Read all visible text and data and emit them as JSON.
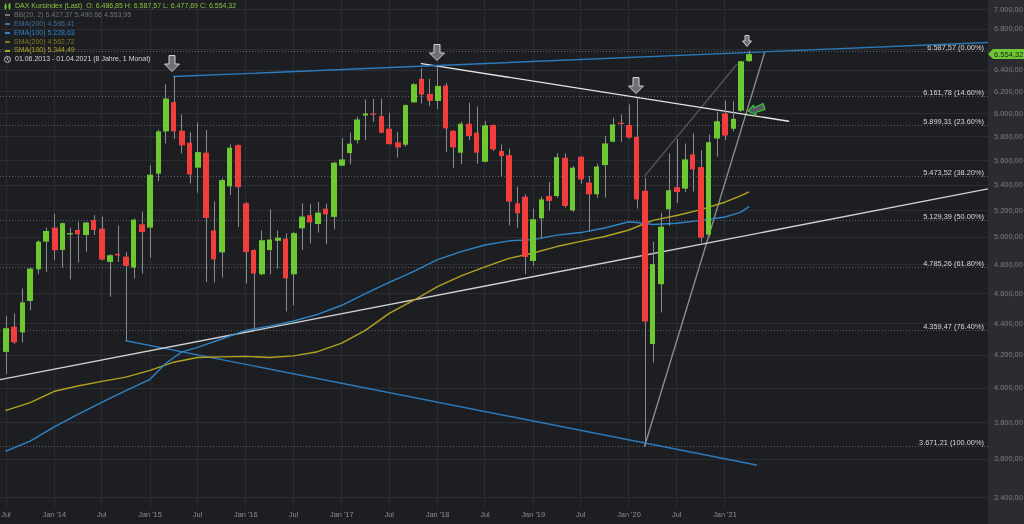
{
  "chart_data": {
    "type": "candlestick",
    "title": "DAX Kursindex (Last)",
    "subtitle": "O: 6.486,85 H: 6.587,57 L: 6.477,69 C: 6.554,32",
    "x": [
      "2013-07",
      "2013-08",
      "2013-09",
      "2013-10",
      "2013-11",
      "2013-12",
      "2014-01",
      "2014-02",
      "2014-03",
      "2014-04",
      "2014-05",
      "2014-06",
      "2014-07",
      "2014-08",
      "2014-09",
      "2014-10",
      "2014-11",
      "2014-12",
      "2015-01",
      "2015-02",
      "2015-03",
      "2015-04",
      "2015-05",
      "2015-06",
      "2015-07",
      "2015-08",
      "2015-09",
      "2015-10",
      "2015-11",
      "2015-12",
      "2016-01",
      "2016-02",
      "2016-03",
      "2016-04",
      "2016-05",
      "2016-06",
      "2016-07",
      "2016-08",
      "2016-09",
      "2016-10",
      "2016-11",
      "2016-12",
      "2017-01",
      "2017-02",
      "2017-03",
      "2017-04",
      "2017-05",
      "2017-06",
      "2017-07",
      "2017-08",
      "2017-09",
      "2017-10",
      "2017-11",
      "2017-12",
      "2018-01",
      "2018-02",
      "2018-03",
      "2018-04",
      "2018-05",
      "2018-06",
      "2018-07",
      "2018-08",
      "2018-09",
      "2018-10",
      "2018-11",
      "2018-12",
      "2019-01",
      "2019-02",
      "2019-03",
      "2019-04",
      "2019-05",
      "2019-06",
      "2019-07",
      "2019-08",
      "2019-09",
      "2019-10",
      "2019-11",
      "2019-12",
      "2020-01",
      "2020-02",
      "2020-03",
      "2020-04",
      "2020-05",
      "2020-06",
      "2020-07",
      "2020-08",
      "2020-09",
      "2020-10",
      "2020-11",
      "2020-12",
      "2021-01",
      "2021-02",
      "2021-03",
      "2021-04"
    ],
    "ohlc": [
      [
        4220,
        4450,
        4085,
        4370
      ],
      [
        4380,
        4467,
        4270,
        4280
      ],
      [
        4343,
        4635,
        4280,
        4540
      ],
      [
        4550,
        4785,
        4488,
        4773
      ],
      [
        4768,
        4977,
        4733,
        4967
      ],
      [
        4967,
        5071,
        4749,
        5046
      ],
      [
        5071,
        5177,
        4832,
        4904
      ],
      [
        4906,
        5110,
        4780,
        5104
      ],
      [
        5020,
        5071,
        4698,
        5030
      ],
      [
        5053,
        5116,
        4816,
        5021
      ],
      [
        5016,
        5114,
        4894,
        5109
      ],
      [
        5128,
        5165,
        5016,
        5053
      ],
      [
        5063,
        5155,
        4830,
        4837
      ],
      [
        4820,
        4875,
        4578,
        4868
      ],
      [
        4878,
        5088,
        4820,
        4866
      ],
      [
        4858,
        4891,
        4290,
        4792
      ],
      [
        4780,
        5140,
        4703,
        5131
      ],
      [
        5096,
        5192,
        4738,
        5038
      ],
      [
        5071,
        5560,
        4850,
        5484
      ],
      [
        5492,
        5863,
        5432,
        5846
      ],
      [
        5846,
        6266,
        5743,
        6138
      ],
      [
        6105,
        6340,
        5783,
        5846
      ],
      [
        5852,
        5995,
        5660,
        5727
      ],
      [
        5750,
        5840,
        5414,
        5486
      ],
      [
        5541,
        5922,
        5340,
        5670
      ],
      [
        5665,
        5857,
        4680,
        5144
      ],
      [
        5050,
        5272,
        4676,
        4839
      ],
      [
        4889,
        5456,
        4710,
        5440
      ],
      [
        5390,
        5735,
        5322,
        5707
      ],
      [
        5729,
        5735,
        5075,
        5384
      ],
      [
        5257,
        5265,
        4669,
        4891
      ],
      [
        4906,
        4910,
        4364,
        4738
      ],
      [
        4733,
        5050,
        4725,
        4977
      ],
      [
        4906,
        5210,
        4733,
        4982
      ],
      [
        4973,
        5050,
        4773,
        4996
      ],
      [
        4989,
        5028,
        4480,
        4705
      ],
      [
        4733,
        5040,
        4520,
        5030
      ],
      [
        5066,
        5257,
        4906,
        5155
      ],
      [
        5165,
        5249,
        4955,
        5110
      ],
      [
        5098,
        5266,
        5034,
        5185
      ],
      [
        5215,
        5254,
        4948,
        5172
      ],
      [
        5152,
        5590,
        5058,
        5582
      ],
      [
        5557,
        5788,
        5555,
        5609
      ],
      [
        5662,
        5835,
        5568,
        5741
      ],
      [
        5771,
        5975,
        5743,
        5950
      ],
      [
        5985,
        6129,
        5771,
        6003
      ],
      [
        6003,
        6135,
        5930,
        5995
      ],
      [
        5980,
        6135,
        5830,
        5835
      ],
      [
        5869,
        6010,
        5735,
        5737
      ],
      [
        5752,
        5843,
        5623,
        5710
      ],
      [
        5732,
        6084,
        5715,
        6078
      ],
      [
        6103,
        6282,
        6100,
        6269
      ],
      [
        6318,
        6420,
        6093,
        6174
      ],
      [
        6180,
        6318,
        6069,
        6117
      ],
      [
        6115,
        6450,
        6043,
        6253
      ],
      [
        6257,
        6282,
        5670,
        5872
      ],
      [
        5852,
        5857,
        5537,
        5710
      ],
      [
        5665,
        5930,
        5568,
        5913
      ],
      [
        5913,
        6100,
        5770,
        5806
      ],
      [
        5835,
        6065,
        5574,
        5665
      ],
      [
        5590,
        5936,
        5585,
        5899
      ],
      [
        5902,
        5907,
        5680,
        5693
      ],
      [
        5679,
        5735,
        5468,
        5637
      ],
      [
        5645,
        5699,
        5088,
        5270
      ],
      [
        5257,
        5387,
        5071,
        5179
      ],
      [
        5308,
        5327,
        4733,
        4856
      ],
      [
        4827,
        5215,
        4792,
        5134
      ],
      [
        5141,
        5308,
        4990,
        5287
      ],
      [
        5313,
        5425,
        5200,
        5275
      ],
      [
        5313,
        5660,
        5300,
        5628
      ],
      [
        5623,
        5660,
        5223,
        5236
      ],
      [
        5202,
        5554,
        5190,
        5541
      ],
      [
        5631,
        5637,
        5412,
        5446
      ],
      [
        5420,
        5473,
        5041,
        5327
      ],
      [
        5327,
        5574,
        5300,
        5550
      ],
      [
        5562,
        5806,
        5300,
        5743
      ],
      [
        5758,
        5966,
        5755,
        5907
      ],
      [
        5922,
        5995,
        5755,
        5910
      ],
      [
        5902,
        6084,
        5785,
        5792
      ],
      [
        5800,
        6144,
        5215,
        5287
      ],
      [
        5356,
        5459,
        3671.21,
        4413
      ],
      [
        4269,
        4967,
        4154,
        4804
      ],
      [
        4664,
        5184,
        4473,
        5078
      ],
      [
        5210,
        5660,
        5084,
        5359
      ],
      [
        5384,
        5783,
        5260,
        5345
      ],
      [
        5372,
        5743,
        5345,
        5609
      ],
      [
        5651,
        5829,
        5349,
        5527
      ],
      [
        5546,
        5685,
        4960,
        4996
      ],
      [
        5018,
        5820,
        5003,
        5754
      ],
      [
        5785,
        6018,
        5632,
        5935
      ],
      [
        6003,
        6120,
        5770,
        5811
      ],
      [
        5869,
        6114,
        5848,
        5956
      ],
      [
        6028,
        6490,
        6015,
        6485
      ],
      [
        6486.85,
        6587.57,
        6477.69,
        6554.32
      ]
    ],
    "colors": [
      "#6dc832",
      "#f23d3d",
      "#6dc832",
      "#6dc832",
      "#6dc832",
      "#6dc832",
      "#f23d3d",
      "#6dc832",
      "#6dc832",
      "#f23d3d",
      "#6dc832",
      "#f23d3d",
      "#f23d3d",
      "#6dc832",
      "#f23d3d",
      "#f23d3d",
      "#6dc832",
      "#f23d3d",
      "#6dc832",
      "#6dc832",
      "#6dc832",
      "#f23d3d",
      "#f23d3d",
      "#f23d3d",
      "#6dc832",
      "#f23d3d",
      "#f23d3d",
      "#6dc832",
      "#6dc832",
      "#f23d3d",
      "#f23d3d",
      "#f23d3d",
      "#6dc832",
      "#6dc832",
      "#6dc832",
      "#f23d3d",
      "#6dc832",
      "#6dc832",
      "#f23d3d",
      "#6dc832",
      "#f23d3d",
      "#6dc832",
      "#6dc832",
      "#6dc832",
      "#6dc832",
      "#6dc832",
      "#f23d3d",
      "#f23d3d",
      "#f23d3d",
      "#f23d3d",
      "#6dc832",
      "#6dc832",
      "#f23d3d",
      "#f23d3d",
      "#6dc832",
      "#f23d3d",
      "#f23d3d",
      "#6dc832",
      "#f23d3d",
      "#f23d3d",
      "#6dc832",
      "#f23d3d",
      "#f23d3d",
      "#f23d3d",
      "#f23d3d",
      "#f23d3d",
      "#6dc832",
      "#6dc832",
      "#f23d3d",
      "#6dc832",
      "#f23d3d",
      "#6dc832",
      "#f23d3d",
      "#f23d3d",
      "#6dc832",
      "#6dc832",
      "#6dc832",
      "#f23d3d",
      "#f23d3d",
      "#f23d3d",
      "#f23d3d",
      "#6dc832",
      "#6dc832",
      "#6dc832",
      "#f23d3d",
      "#6dc832",
      "#f23d3d",
      "#f23d3d",
      "#6dc832",
      "#6dc832",
      "#f23d3d",
      "#6dc832",
      "#6dc832",
      "#6dc832"
    ],
    "series": [
      {
        "name": "EMA(100) 5.228,63",
        "type": "line",
        "color": "#2f84c6",
        "x": [
          "2013-07",
          "2013-10",
          "2014-01",
          "2014-04",
          "2014-07",
          "2014-10",
          "2015-01",
          "2015-03",
          "2015-05",
          "2015-07",
          "2015-10",
          "2016-01",
          "2016-04",
          "2016-07",
          "2016-10",
          "2017-01",
          "2017-04",
          "2017-07",
          "2017-10",
          "2018-01",
          "2018-04",
          "2018-07",
          "2018-10",
          "2019-01",
          "2019-04",
          "2019-07",
          "2019-10",
          "2020-01",
          "2020-02",
          "2020-04",
          "2020-07",
          "2020-10",
          "2021-01",
          "2021-03",
          "2021-04"
        ],
        "values": [
          3644,
          3698,
          3777,
          3848,
          3916,
          3985,
          4052,
          4148,
          4218,
          4248,
          4301,
          4356,
          4384,
          4417,
          4460,
          4521,
          4599,
          4676,
          4751,
          4836,
          4894,
          4942,
          4973,
          4982,
          5015,
          5034,
          5068,
          5115,
          5110,
          5094,
          5104,
          5126,
          5151,
          5187,
          5228.63
        ]
      },
      {
        "name": "SMA(100) 5.344,49",
        "type": "line",
        "color": "#b3a520",
        "x": [
          "2013-07",
          "2013-10",
          "2014-01",
          "2014-04",
          "2014-07",
          "2014-10",
          "2015-01",
          "2015-04",
          "2015-07",
          "2015-10",
          "2016-01",
          "2016-04",
          "2016-07",
          "2016-10",
          "2017-01",
          "2017-04",
          "2017-07",
          "2017-10",
          "2018-01",
          "2018-04",
          "2018-07",
          "2018-10",
          "2019-01",
          "2019-04",
          "2019-07",
          "2019-10",
          "2020-01",
          "2020-04",
          "2020-07",
          "2020-10",
          "2021-01",
          "2021-03",
          "2021-04"
        ],
        "values": [
          3870,
          3915,
          3981,
          4012,
          4040,
          4065,
          4106,
          4156,
          4185,
          4189,
          4192,
          4185,
          4195,
          4221,
          4275,
          4356,
          4467,
          4553,
          4648,
          4722,
          4785,
          4846,
          4884,
          4931,
          4969,
          5005,
          5053,
          5126,
          5163,
          5208,
          5265,
          5314,
          5344.49
        ]
      },
      {
        "type": "line",
        "color": "#2b7bbd",
        "x": [
          "2015-04",
          "2023-10-01"
        ],
        "values": [
          6340,
          6668
        ]
      },
      {
        "type": "line",
        "color": "#e6e6e6",
        "x": [
          "2017-11",
          "2021-09"
        ],
        "values": [
          6463,
          5935
        ]
      },
      {
        "type": "line",
        "color": "#d2d2d2",
        "x": [
          "2013-06-08",
          "2023-10-01"
        ],
        "values": [
          4050,
          5370
        ]
      },
      {
        "type": "line",
        "color": "#2b7bbd",
        "x": [
          "2014-10",
          "2021-05"
        ],
        "values": [
          4290,
          3570
        ]
      },
      {
        "type": "line",
        "color": "#8c8c8c",
        "x": [
          "2020-03",
          "2021-06"
        ],
        "values": [
          3671.21,
          6566
        ]
      },
      {
        "type": "line",
        "color": "#4e525a",
        "x": [
          "2020-03",
          "2021-02-15"
        ],
        "values": [
          5473.52,
          6454
        ]
      }
    ],
    "ref_lines": [
      {
        "axis": "y",
        "value": 6587.57,
        "label": "6.587,57 (0.00%)",
        "color": "#5a5e66",
        "line_style": "dotted"
      },
      {
        "axis": "y",
        "value": 6161.78,
        "label": "6.161,78 (14.60%)",
        "color": "#5a5e66",
        "line_style": "dotted"
      },
      {
        "axis": "y",
        "value": 5899.31,
        "label": "5.899,31 (23.60%)",
        "color": "#5a5e66",
        "line_style": "dotted"
      },
      {
        "axis": "y",
        "value": 5473.52,
        "label": "5.473,52 (38.20%)",
        "color": "#5a5e66",
        "line_style": "dotted"
      },
      {
        "axis": "y",
        "value": 5129.39,
        "label": "5.129,39 (50.00%)",
        "color": "#5a5e66",
        "line_style": "dotted"
      },
      {
        "axis": "y",
        "value": 4785.26,
        "label": "4.785,26 (61.80%)",
        "color": "#5a5e66",
        "line_style": "dotted"
      },
      {
        "axis": "y",
        "value": 4359.47,
        "label": "4.359,47 (76.40%)",
        "color": "#5a5e66",
        "line_style": "dotted"
      },
      {
        "axis": "y",
        "value": 3671.21,
        "label": "3.671,21 (100.00%)",
        "color": "#5a5e66",
        "line_style": "dotted"
      }
    ],
    "annotations": [
      "BB(20, 2) 6.427,37 5.490,66 4.553,95",
      "EMA(200) 4.595,41",
      "SMA(200) 4.562,72",
      "01.06.2013 - 01.04.2021 (8 Jahre, 1 Monat)",
      "6.554,32"
    ],
    "xlim": [
      "2013-06-08",
      "2023-10-01"
    ],
    "xticks": [
      {
        "value": "2013-07",
        "label": "Jul"
      },
      {
        "value": "2014-01",
        "label": "Jan '14"
      },
      {
        "value": "2014-07",
        "label": "Jul"
      },
      {
        "value": "2015-01",
        "label": "Jan '15"
      },
      {
        "value": "2015-07",
        "label": "Jul"
      },
      {
        "value": "2016-01",
        "label": "Jan '16"
      },
      {
        "value": "2016-07",
        "label": "Jul"
      },
      {
        "value": "2017-01",
        "label": "Jan '17"
      },
      {
        "value": "2017-07",
        "label": "Jul"
      },
      {
        "value": "2018-01",
        "label": "Jan '18"
      },
      {
        "value": "2018-07",
        "label": "Jul"
      },
      {
        "value": "2019-01",
        "label": "Jan '19"
      },
      {
        "value": "2019-07",
        "label": "Jul"
      },
      {
        "value": "2020-01",
        "label": "Jan '20"
      },
      {
        "value": "2020-07",
        "label": "Jul"
      },
      {
        "value": "2021-01",
        "label": "Jan '21"
      }
    ],
    "ylim": [
      3350,
      7100
    ],
    "yticks": [
      {
        "value": 3400,
        "label": "3.400,00"
      },
      {
        "value": 3600,
        "label": "3.600,00"
      },
      {
        "value": 3800,
        "label": "3.800,00"
      },
      {
        "value": 4000,
        "label": "4.000,00"
      },
      {
        "value": 4200,
        "label": "4.200,00"
      },
      {
        "value": 4400,
        "label": "4.400,00"
      },
      {
        "value": 4600,
        "label": "4.600,00"
      },
      {
        "value": 4800,
        "label": "4.800,00"
      },
      {
        "value": 5000,
        "label": "5.000,00"
      },
      {
        "value": 5200,
        "label": "5.200,00"
      },
      {
        "value": 5400,
        "label": "5.400,00"
      },
      {
        "value": 5600,
        "label": "5.600,00"
      },
      {
        "value": 5800,
        "label": "5.800,00"
      },
      {
        "value": 6000,
        "label": "6.000,00"
      },
      {
        "value": 6200,
        "label": "6.200,00"
      },
      {
        "value": 6400,
        "label": "6.400,00"
      },
      {
        "value": 6600,
        "label": null
      },
      {
        "value": 6800,
        "label": "6.800,00"
      },
      {
        "value": 7000,
        "label": "7.000,00"
      }
    ],
    "log": true,
    "grid": true,
    "legend": "top left"
  }
}
